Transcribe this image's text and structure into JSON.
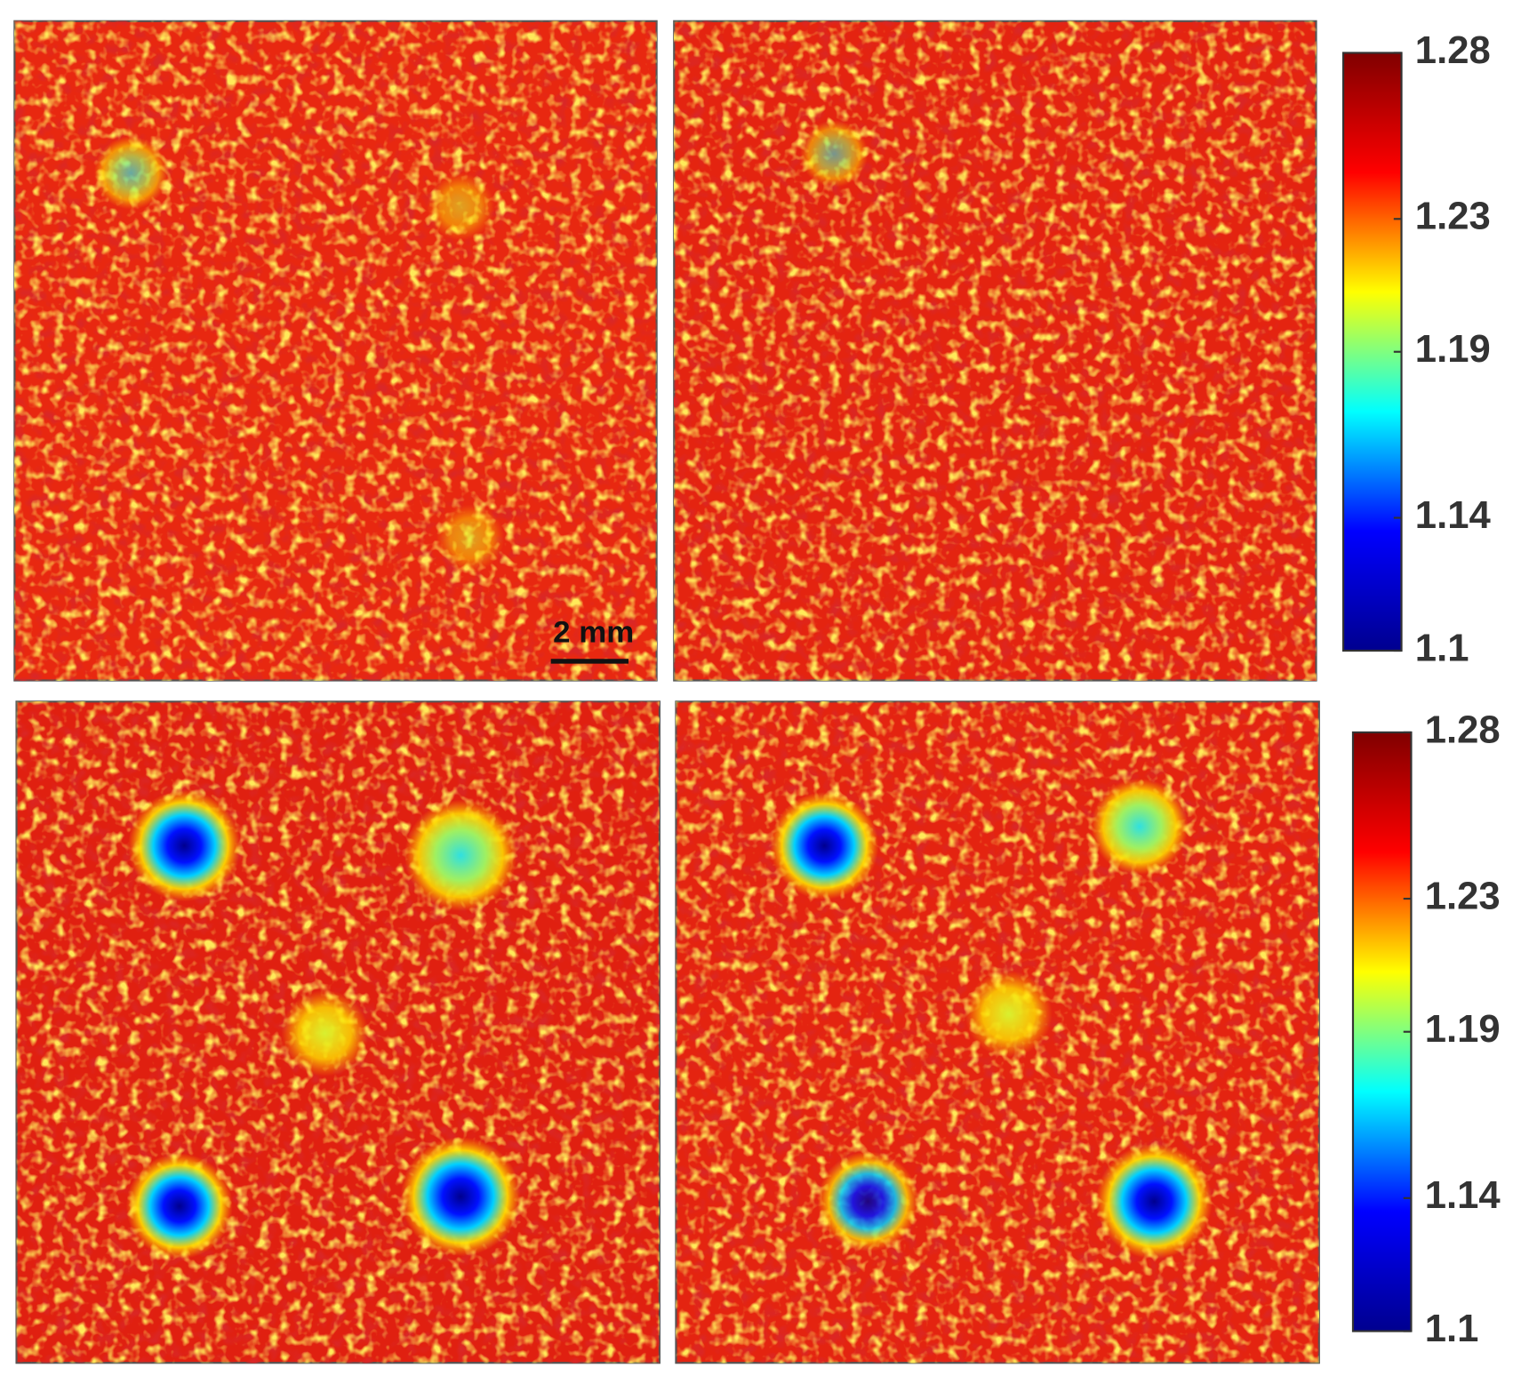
{
  "chart_data": [
    {
      "type": "heatmap",
      "annotation": "2 mm",
      "colormap": [
        "#00008f",
        "#0000ff",
        "#00ffff",
        "#ffff00",
        "#ff0000",
        "#800000"
      ],
      "clim": [
        1.1,
        1.28
      ],
      "cticks": [
        1.1,
        1.14,
        1.19,
        1.23,
        1.28
      ]
    },
    {
      "type": "heatmap",
      "colormap": [
        "#00008f",
        "#0000ff",
        "#00ffff",
        "#ffff00",
        "#ff0000",
        "#800000"
      ],
      "clim": [
        1.1,
        1.28
      ],
      "cticks": [
        1.1,
        1.14,
        1.19,
        1.23,
        1.28
      ]
    }
  ]
}
